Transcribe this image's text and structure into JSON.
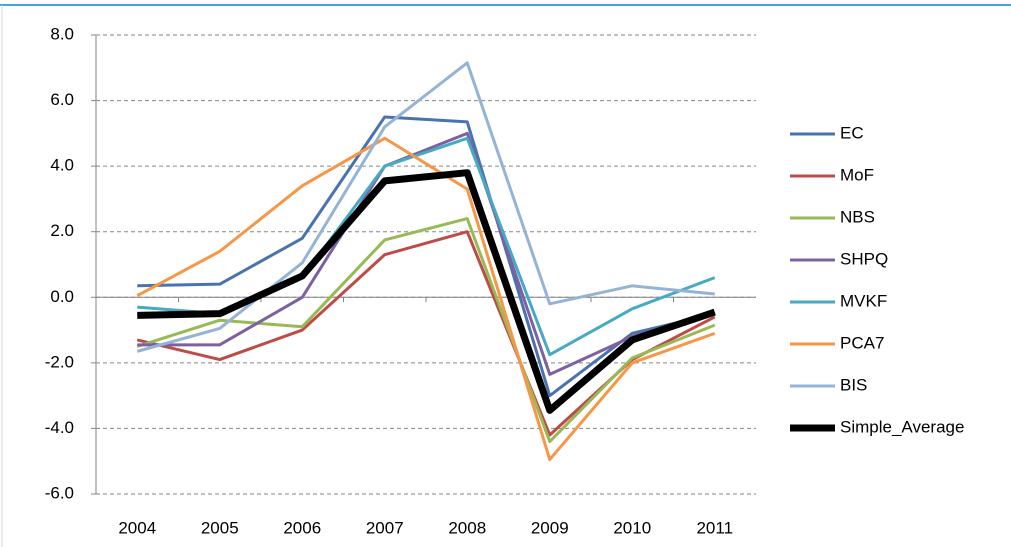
{
  "chart_data": {
    "type": "line",
    "categories": [
      "2004",
      "2005",
      "2006",
      "2007",
      "2008",
      "2009",
      "2010",
      "2011"
    ],
    "series": [
      {
        "name": "EC",
        "color": "#4a72b0",
        "values": [
          0.35,
          0.4,
          1.8,
          5.5,
          5.35,
          -3.0,
          -1.1,
          -0.5
        ]
      },
      {
        "name": "MoF",
        "color": "#be4b48",
        "values": [
          -1.3,
          -1.9,
          -1.0,
          1.3,
          2.0,
          -4.2,
          -1.9,
          -0.6
        ]
      },
      {
        "name": "NBS",
        "color": "#98b954",
        "values": [
          -1.5,
          -0.7,
          -0.9,
          1.75,
          2.4,
          -4.4,
          -1.85,
          -0.85
        ]
      },
      {
        "name": "SHPQ",
        "color": "#7d60a0",
        "values": [
          -1.45,
          -1.45,
          0.0,
          4.0,
          5.0,
          -2.35,
          -1.2,
          -0.5
        ]
      },
      {
        "name": "MVKF",
        "color": "#46aac5",
        "values": [
          -0.3,
          -0.5,
          0.6,
          4.0,
          4.85,
          -1.75,
          -0.35,
          0.6
        ]
      },
      {
        "name": "PCA7",
        "color": "#f79646",
        "values": [
          0.05,
          1.4,
          3.4,
          4.85,
          3.3,
          -4.95,
          -2.0,
          -1.1
        ]
      },
      {
        "name": "BIS",
        "color": "#95b3d7",
        "values": [
          -1.65,
          -0.95,
          1.05,
          5.2,
          7.15,
          -0.2,
          0.35,
          0.1
        ]
      },
      {
        "name": "Simple_Average",
        "color": "#000000",
        "values": [
          -0.55,
          -0.5,
          0.65,
          3.55,
          3.8,
          -3.45,
          -1.3,
          -0.45
        ]
      }
    ],
    "ylim": [
      -6,
      8
    ],
    "yticks": [
      {
        "value": -6,
        "label": "-6.0"
      },
      {
        "value": -4,
        "label": "-4.0"
      },
      {
        "value": -2,
        "label": "-2.0"
      },
      {
        "value": 0,
        "label": "0.0"
      },
      {
        "value": 2,
        "label": "2.0"
      },
      {
        "value": 4,
        "label": "4.0"
      },
      {
        "value": 6,
        "label": "6.0"
      },
      {
        "value": 8,
        "label": "8.0"
      }
    ],
    "grid": true,
    "legend": "right"
  }
}
